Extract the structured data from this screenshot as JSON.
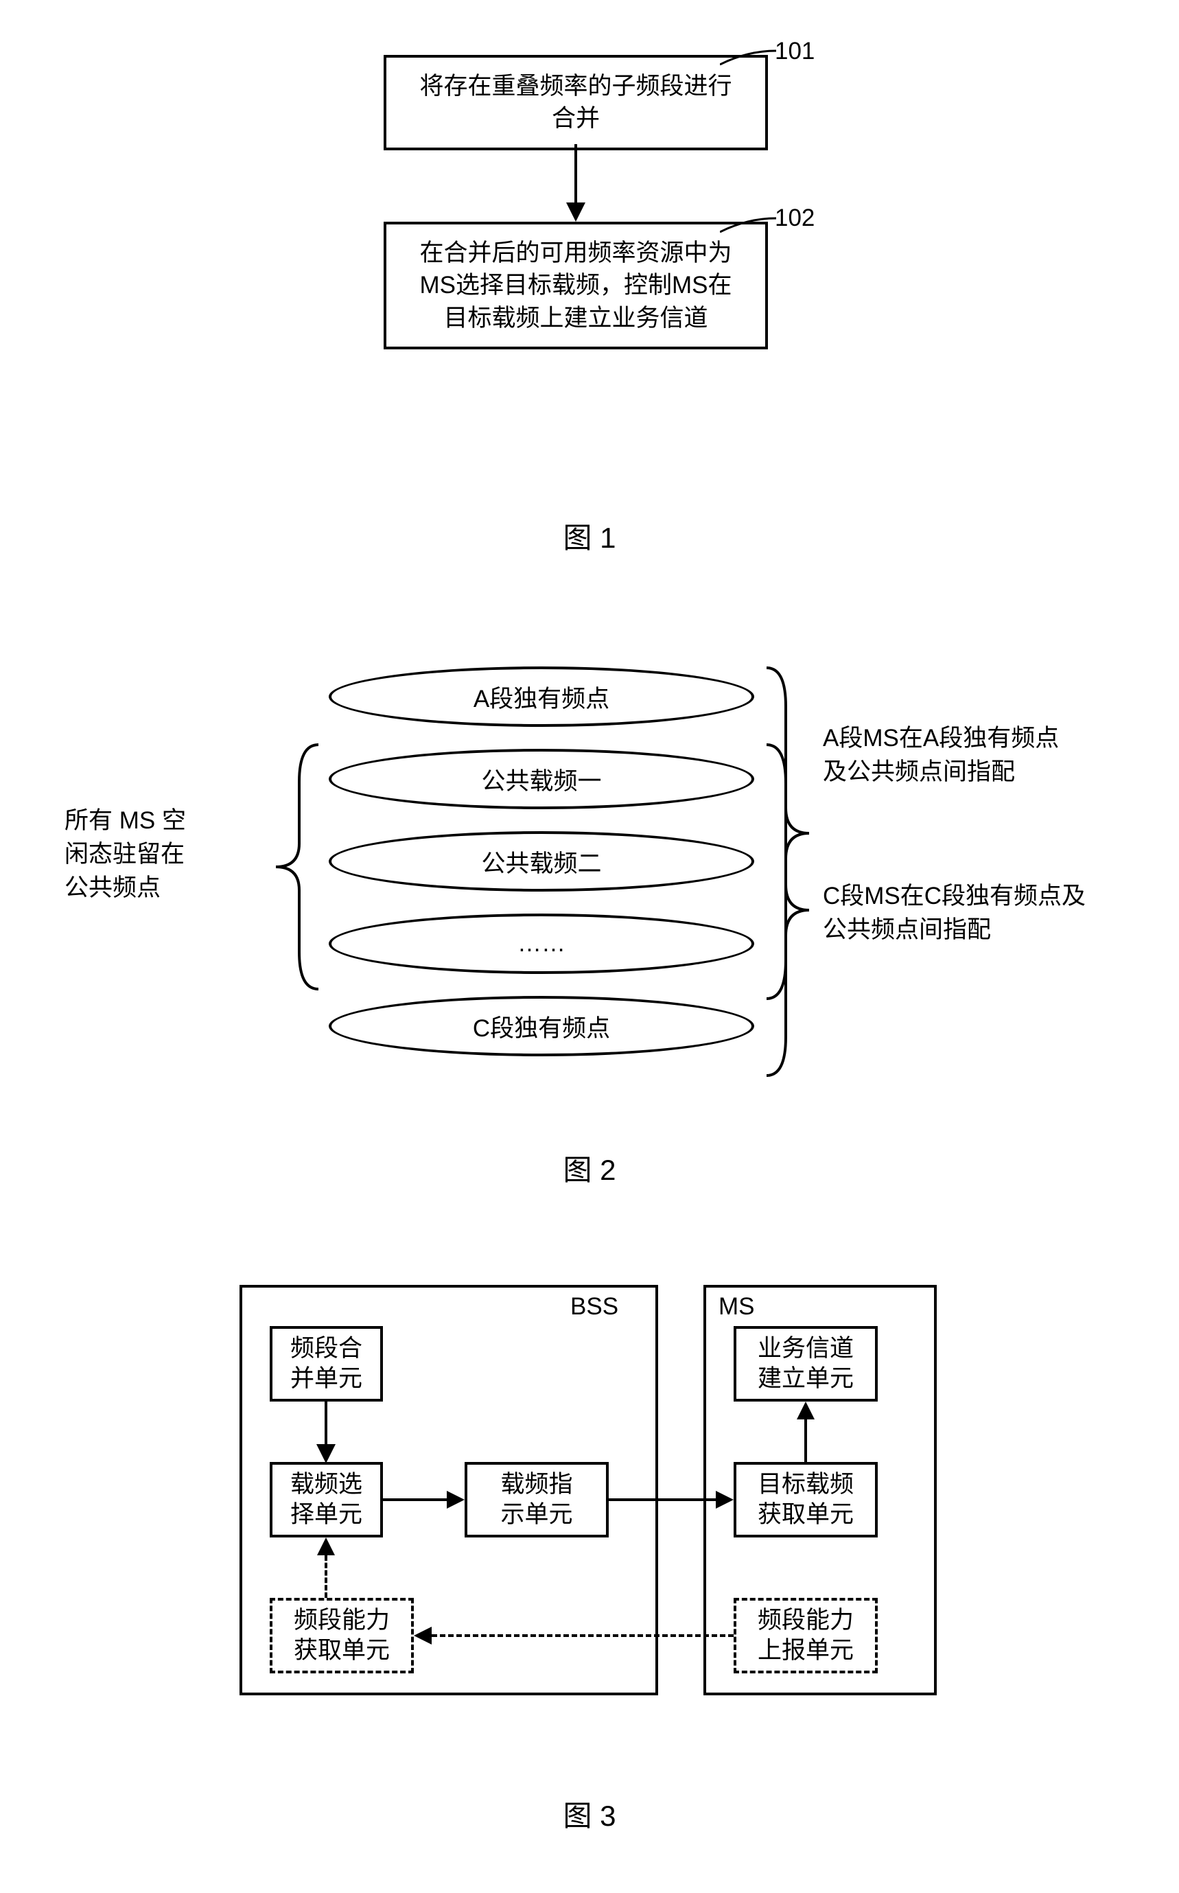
{
  "fig1": {
    "box1": "将存在重叠频率的子频段进行\n合并",
    "box2": "在合并后的可用频率资源中为\nMS选择目标载频，控制MS在\n目标载频上建立业务信道",
    "label1": "101",
    "label2": "102",
    "caption": "图 1"
  },
  "fig2": {
    "ellipses": [
      "A段独有频点",
      "公共载频一",
      "公共载频二",
      "……",
      "C段独有频点"
    ],
    "note_left": "所有 MS 空\n闲态驻留在\n公共频点",
    "note_right_a": "A段MS在A段独有频点\n及公共频点间指配",
    "note_right_c": "C段MS在C段独有频点及\n公共频点间指配",
    "caption": "图 2"
  },
  "fig3": {
    "bss_label": "BSS",
    "ms_label": "MS",
    "bss": {
      "merge": "频段合\n并单元",
      "select": "载频选\n择单元",
      "indicate": "载频指\n示单元",
      "cap_get": "频段能力\n获取单元"
    },
    "ms": {
      "target_get": "目标载频\n获取单元",
      "build": "业务信道\n建立单元",
      "cap_report": "频段能力\n上报单元"
    },
    "caption": "图 3"
  }
}
